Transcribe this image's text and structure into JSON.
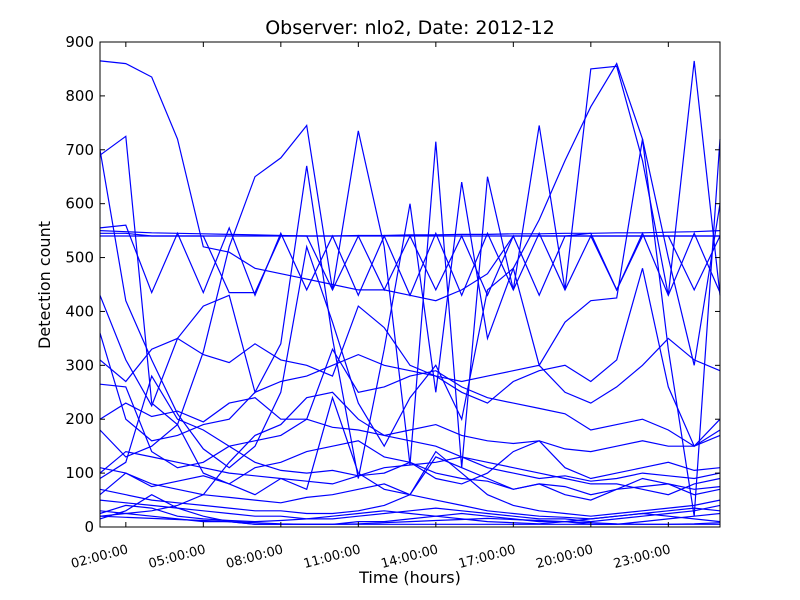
{
  "chart_data": {
    "type": "line",
    "title": "Observer: nlo2, Date: 2012-12",
    "xlabel": "Time (hours)",
    "ylabel": "Detection count",
    "xlim": [
      "01:00:00",
      "25:00:00"
    ],
    "ylim": [
      0,
      900
    ],
    "x_ticks": [
      "02:00:00",
      "05:00:00",
      "08:00:00",
      "11:00:00",
      "14:00:00",
      "17:00:00",
      "20:00:00",
      "23:00:00"
    ],
    "y_ticks": [
      0,
      100,
      200,
      300,
      400,
      500,
      600,
      700,
      800,
      900
    ],
    "grid": false,
    "line_color": "#0000ff",
    "series": [
      {
        "x": [
          1,
          2,
          3,
          4,
          5,
          6,
          7,
          8,
          9,
          10,
          11,
          12,
          13,
          14,
          15,
          16,
          17,
          18,
          19,
          20,
          21,
          22,
          23,
          24,
          25
        ],
        "values": [
          545,
          545,
          540,
          540,
          540,
          540,
          540,
          540,
          540,
          540,
          540,
          540,
          540,
          540,
          540,
          540,
          540,
          540,
          540,
          540,
          540,
          540,
          540,
          540,
          540
        ]
      },
      {
        "x": [
          1,
          2,
          3,
          4,
          5,
          6,
          7,
          8,
          9,
          10,
          11,
          12,
          13,
          14,
          15,
          16,
          17,
          18,
          19,
          20,
          21,
          22,
          23,
          24,
          25
        ],
        "values": [
          550,
          548,
          546,
          545,
          544,
          543,
          542,
          541,
          540,
          540,
          541,
          541,
          542,
          542,
          543,
          543,
          544,
          544,
          545,
          545,
          546,
          546,
          547,
          548,
          550
        ]
      },
      {
        "x": [
          1,
          2,
          3,
          4,
          5,
          6,
          7,
          8,
          9,
          10,
          11,
          12,
          13,
          14,
          15,
          16,
          17,
          18,
          19,
          20,
          21,
          22,
          23,
          24,
          25
        ],
        "values": [
          555,
          560,
          435,
          545,
          435,
          555,
          430,
          545,
          440,
          540,
          430,
          540,
          430,
          545,
          430,
          545,
          440,
          545,
          440,
          540,
          440,
          545,
          430,
          545,
          435
        ]
      },
      {
        "x": [
          1,
          2,
          3,
          4,
          5,
          6,
          7,
          8,
          9,
          10,
          11,
          12,
          13,
          14,
          15,
          16,
          17,
          18,
          19,
          20,
          21,
          22,
          23,
          24,
          25
        ],
        "values": [
          540,
          540,
          540,
          540,
          540,
          435,
          435,
          540,
          540,
          440,
          540,
          440,
          540,
          440,
          540,
          430,
          540,
          430,
          540,
          545,
          440,
          540,
          540,
          440,
          540
        ]
      },
      {
        "x": [
          1,
          2,
          3,
          4,
          5,
          6,
          7,
          8,
          9,
          10,
          11,
          12,
          13,
          14,
          15,
          16,
          17,
          18,
          19,
          20,
          21,
          22,
          23,
          24,
          25
        ],
        "values": [
          865,
          860,
          835,
          720,
          520,
          510,
          480,
          470,
          460,
          450,
          440,
          440,
          430,
          420,
          440,
          470,
          540,
          540,
          540,
          540,
          540,
          540,
          540,
          540,
          540
        ]
      },
      {
        "x": [
          1,
          2,
          3,
          4,
          5,
          6,
          7,
          8,
          9,
          10,
          11,
          12,
          13,
          14,
          15,
          16,
          17,
          18,
          19,
          20,
          21,
          22,
          23,
          24,
          25
        ],
        "values": [
          690,
          725,
          230,
          190,
          325,
          520,
          650,
          685,
          745,
          440,
          735,
          520,
          115,
          715,
          110,
          650,
          440,
          745,
          440,
          850,
          855,
          680,
          430,
          865,
          430
        ]
      },
      {
        "x": [
          1,
          2,
          3,
          4,
          5,
          6,
          7,
          8,
          9,
          10,
          11,
          12,
          13,
          14,
          15,
          16,
          17,
          18,
          19,
          20,
          21,
          22,
          23,
          24,
          25
        ],
        "values": [
          430,
          310,
          225,
          350,
          410,
          430,
          250,
          340,
          670,
          350,
          90,
          330,
          600,
          250,
          640,
          350,
          480,
          570,
          680,
          780,
          860,
          720,
          330,
          20,
          720
        ]
      },
      {
        "x": [
          1,
          2,
          3,
          4,
          5,
          6,
          7,
          8,
          9,
          10,
          11,
          12,
          13,
          14,
          15,
          16,
          17,
          18,
          19,
          20,
          21,
          22,
          23,
          24,
          25
        ],
        "values": [
          700,
          420,
          310,
          210,
          145,
          110,
          150,
          250,
          520,
          380,
          230,
          150,
          240,
          300,
          200,
          440,
          480,
          300,
          380,
          420,
          425,
          720,
          500,
          300,
          600
        ]
      },
      {
        "x": [
          1,
          2,
          3,
          4,
          5,
          6,
          7,
          8,
          9,
          10,
          11,
          12,
          13,
          14,
          15,
          16,
          17,
          18,
          19,
          20,
          21,
          22,
          23,
          24,
          25
        ],
        "values": [
          360,
          200,
          160,
          170,
          190,
          200,
          250,
          270,
          280,
          300,
          320,
          300,
          290,
          280,
          270,
          280,
          290,
          300,
          250,
          230,
          260,
          300,
          350,
          310,
          290
        ]
      },
      {
        "x": [
          1,
          2,
          3,
          4,
          5,
          6,
          7,
          8,
          9,
          10,
          11,
          12,
          13,
          14,
          15,
          16,
          17,
          18,
          19,
          20,
          21,
          22,
          23,
          24,
          25
        ],
        "values": [
          310,
          270,
          330,
          350,
          320,
          305,
          340,
          310,
          300,
          280,
          410,
          370,
          300,
          280,
          250,
          230,
          270,
          290,
          300,
          270,
          310,
          480,
          260,
          150,
          200
        ]
      },
      {
        "x": [
          1,
          2,
          3,
          4,
          5,
          6,
          7,
          8,
          9,
          10,
          11,
          12,
          13,
          14,
          15,
          16,
          17,
          18,
          19,
          20,
          21,
          22,
          23,
          24,
          25
        ],
        "values": [
          265,
          260,
          140,
          110,
          120,
          150,
          160,
          170,
          200,
          330,
          250,
          260,
          280,
          290,
          260,
          240,
          230,
          220,
          210,
          180,
          190,
          200,
          180,
          150,
          180
        ]
      },
      {
        "x": [
          1,
          2,
          3,
          4,
          5,
          6,
          7,
          8,
          9,
          10,
          11,
          12,
          13,
          14,
          15,
          16,
          17,
          18,
          19,
          20,
          21,
          22,
          23,
          24,
          25
        ],
        "values": [
          200,
          230,
          205,
          215,
          195,
          230,
          240,
          200,
          200,
          185,
          180,
          170,
          180,
          190,
          170,
          160,
          155,
          160,
          145,
          140,
          150,
          160,
          150,
          150,
          170
        ]
      },
      {
        "x": [
          1,
          2,
          3,
          4,
          5,
          6,
          7,
          8,
          9,
          10,
          11,
          12,
          13,
          14,
          15,
          16,
          17,
          18,
          19,
          20,
          21,
          22,
          23,
          24,
          25
        ],
        "values": [
          180,
          130,
          150,
          190,
          100,
          80,
          60,
          90,
          70,
          240,
          100,
          70,
          60,
          130,
          110,
          90,
          70,
          80,
          60,
          50,
          70,
          90,
          80,
          60,
          70
        ]
      },
      {
        "x": [
          1,
          2,
          3,
          4,
          5,
          6,
          7,
          8,
          9,
          10,
          11,
          12,
          13,
          14,
          15,
          16,
          17,
          18,
          19,
          20,
          21,
          22,
          23,
          24,
          25
        ],
        "values": [
          90,
          120,
          280,
          200,
          180,
          150,
          120,
          105,
          100,
          105,
          95,
          100,
          120,
          90,
          80,
          100,
          140,
          160,
          110,
          90,
          100,
          110,
          120,
          105,
          110
        ]
      },
      {
        "x": [
          1,
          2,
          3,
          4,
          5,
          6,
          7,
          8,
          9,
          10,
          11,
          12,
          13,
          14,
          15,
          16,
          17,
          18,
          19,
          20,
          21,
          22,
          23,
          24,
          25
        ],
        "values": [
          110,
          100,
          80,
          70,
          60,
          120,
          170,
          190,
          240,
          250,
          200,
          170,
          160,
          150,
          130,
          120,
          110,
          100,
          90,
          80,
          80,
          70,
          60,
          80,
          90
        ]
      },
      {
        "x": [
          1,
          2,
          3,
          4,
          5,
          6,
          7,
          8,
          9,
          10,
          11,
          12,
          13,
          14,
          15,
          16,
          17,
          18,
          19,
          20,
          21,
          22,
          23,
          24,
          25
        ],
        "values": [
          70,
          60,
          50,
          45,
          40,
          35,
          30,
          30,
          25,
          25,
          30,
          40,
          60,
          140,
          100,
          60,
          40,
          30,
          25,
          20,
          25,
          30,
          35,
          40,
          50
        ]
      },
      {
        "x": [
          1,
          2,
          3,
          4,
          5,
          6,
          7,
          8,
          9,
          10,
          11,
          12,
          13,
          14,
          15,
          16,
          17,
          18,
          19,
          20,
          21,
          22,
          23,
          24,
          25
        ],
        "values": [
          50,
          45,
          40,
          35,
          30,
          25,
          20,
          20,
          15,
          15,
          20,
          25,
          30,
          35,
          30,
          25,
          20,
          15,
          15,
          10,
          15,
          20,
          25,
          30,
          40
        ]
      },
      {
        "x": [
          1,
          2,
          3,
          4,
          5,
          6,
          7,
          8,
          9,
          10,
          11,
          12,
          13,
          14,
          15,
          16,
          17,
          18,
          19,
          20,
          21,
          22,
          23,
          24,
          25
        ],
        "values": [
          30,
          25,
          20,
          15,
          10,
          10,
          5,
          5,
          5,
          5,
          10,
          10,
          15,
          20,
          25,
          20,
          15,
          10,
          10,
          5,
          5,
          10,
          15,
          20,
          25
        ]
      },
      {
        "x": [
          1,
          2,
          3,
          4,
          5,
          6,
          7,
          8,
          9,
          10,
          11,
          12,
          13,
          14,
          15,
          16,
          17,
          18,
          19,
          20,
          21,
          22,
          23,
          24,
          25
        ],
        "values": [
          20,
          18,
          16,
          14,
          12,
          10,
          8,
          6,
          5,
          5,
          6,
          8,
          10,
          12,
          14,
          16,
          14,
          12,
          10,
          8,
          6,
          5,
          5,
          6,
          8
        ]
      },
      {
        "x": [
          1,
          2,
          3,
          4,
          5,
          6,
          7,
          8,
          9,
          10,
          11,
          12,
          13,
          14,
          15,
          16,
          17,
          18,
          19,
          20,
          21,
          22,
          23,
          24,
          25
        ],
        "values": [
          15,
          30,
          60,
          35,
          20,
          10,
          5,
          5,
          5,
          5,
          5,
          5,
          5,
          5,
          5,
          5,
          5,
          5,
          5,
          5,
          5,
          5,
          5,
          5,
          5
        ]
      },
      {
        "x": [
          1,
          2,
          3,
          4,
          5,
          6,
          7,
          8,
          9,
          10,
          11,
          12,
          13,
          14,
          15,
          16,
          17,
          18,
          19,
          20,
          21,
          22,
          23,
          24,
          25
        ],
        "values": [
          25,
          40,
          35,
          20,
          15,
          12,
          10,
          12,
          15,
          20,
          25,
          30,
          25,
          20,
          15,
          10,
          8,
          6,
          10,
          15,
          20,
          25,
          20,
          15,
          10
        ]
      },
      {
        "x": [
          1,
          2,
          3,
          4,
          5,
          6,
          7,
          8,
          9,
          10,
          11,
          12,
          13,
          14,
          15,
          16,
          17,
          18,
          19,
          20,
          21,
          22,
          23,
          24,
          25
        ],
        "values": [
          60,
          100,
          75,
          85,
          95,
          80,
          110,
          120,
          140,
          150,
          160,
          130,
          120,
          100,
          90,
          85,
          70,
          80,
          75,
          60,
          70,
          75,
          80,
          70,
          75
        ]
      },
      {
        "x": [
          1,
          2,
          3,
          4,
          5,
          6,
          7,
          8,
          9,
          10,
          11,
          12,
          13,
          14,
          15,
          16,
          17,
          18,
          19,
          20,
          21,
          22,
          23,
          24,
          25
        ],
        "values": [
          100,
          140,
          130,
          120,
          110,
          100,
          95,
          90,
          85,
          80,
          95,
          110,
          115,
          120,
          130,
          110,
          100,
          90,
          95,
          85,
          90,
          100,
          95,
          90,
          100
        ]
      },
      {
        "x": [
          1,
          2,
          3,
          4,
          5,
          6,
          7,
          8,
          9,
          10,
          11,
          12,
          13,
          14,
          15,
          16,
          17,
          18,
          19,
          20,
          21,
          22,
          23,
          24,
          25
        ],
        "values": [
          20,
          25,
          30,
          40,
          60,
          55,
          50,
          45,
          55,
          60,
          70,
          80,
          60,
          50,
          40,
          30,
          25,
          20,
          18,
          15,
          20,
          25,
          30,
          35,
          30
        ]
      }
    ]
  }
}
